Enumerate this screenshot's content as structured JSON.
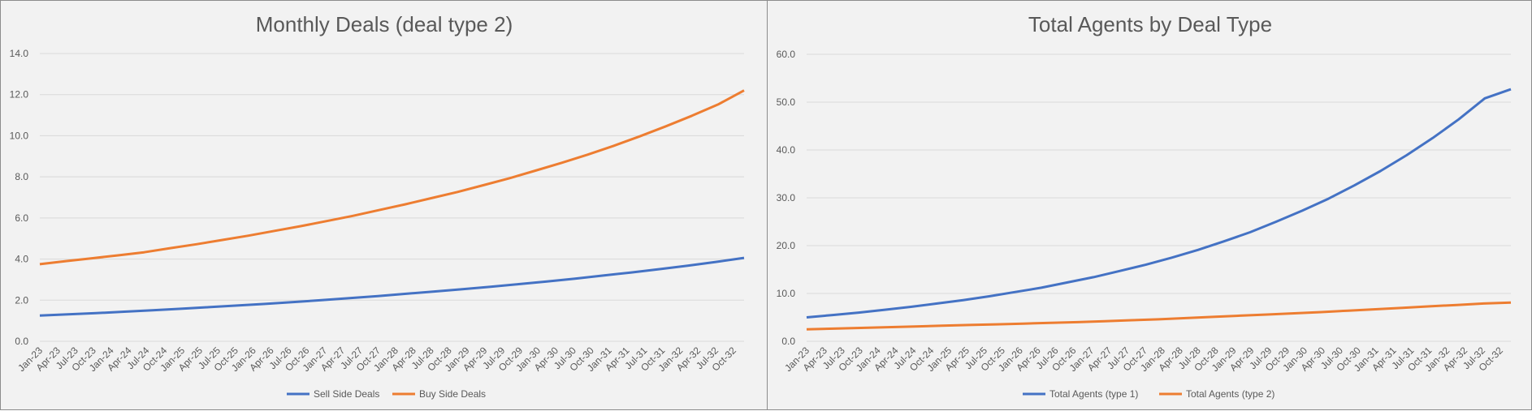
{
  "chart_data": [
    {
      "type": "line",
      "title": "Monthly Deals (deal type 2)",
      "xlabel": "",
      "ylabel": "",
      "x_tick_labels": [
        "Jan-23",
        "Apr-23",
        "Jul-23",
        "Oct-23",
        "Jan-24",
        "Apr-24",
        "Jul-24",
        "Oct-24",
        "Jan-25",
        "Apr-25",
        "Jul-25",
        "Oct-25",
        "Jan-26",
        "Apr-26",
        "Jul-26",
        "Oct-26",
        "Jan-27",
        "Apr-27",
        "Jul-27",
        "Oct-27",
        "Jan-28",
        "Apr-28",
        "Jul-28",
        "Oct-28",
        "Jan-29",
        "Apr-29",
        "Jul-29",
        "Oct-29",
        "Jan-30",
        "Apr-30",
        "Jul-30",
        "Oct-30",
        "Jan-31",
        "Apr-31",
        "Jul-31",
        "Oct-31",
        "Jan-32",
        "Apr-32",
        "Jul-32",
        "Oct-32"
      ],
      "y_tick_labels": [
        "0.0",
        "2.0",
        "4.0",
        "6.0",
        "8.0",
        "10.0",
        "12.0",
        "14.0"
      ],
      "ylim": [
        0,
        14
      ],
      "grid": true,
      "legend_position": "bottom",
      "series": [
        {
          "name": "Sell Side Deals",
          "color": "#4472c4",
          "values": [
            1.25,
            1.31,
            1.37,
            1.44,
            1.51,
            1.58,
            1.66,
            1.74,
            1.82,
            1.91,
            2.0,
            2.1,
            2.2,
            2.31,
            2.42,
            2.53,
            2.65,
            2.78,
            2.91,
            3.05,
            3.2,
            3.35,
            3.51,
            3.68,
            3.86,
            4.06
          ]
        },
        {
          "name": "Buy Side Deals",
          "color": "#ed7d31",
          "values": [
            3.75,
            3.9,
            4.04,
            4.18,
            4.33,
            4.53,
            4.72,
            4.93,
            5.14,
            5.37,
            5.6,
            5.85,
            6.1,
            6.38,
            6.66,
            6.96,
            7.26,
            7.59,
            7.93,
            8.3,
            8.68,
            9.08,
            9.51,
            9.97,
            10.46,
            10.97,
            11.52,
            12.2
          ]
        }
      ]
    },
    {
      "type": "line",
      "title": "Total Agents by Deal Type",
      "xlabel": "",
      "ylabel": "",
      "x_tick_labels": [
        "Jan-23",
        "Apr-23",
        "Jul-23",
        "Oct-23",
        "Jan-24",
        "Apr-24",
        "Jul-24",
        "Oct-24",
        "Jan-25",
        "Apr-25",
        "Jul-25",
        "Oct-25",
        "Jan-26",
        "Apr-26",
        "Jul-26",
        "Oct-26",
        "Jan-27",
        "Apr-27",
        "Jul-27",
        "Oct-27",
        "Jan-28",
        "Apr-28",
        "Jul-28",
        "Oct-28",
        "Jan-29",
        "Apr-29",
        "Jul-29",
        "Oct-29",
        "Jan-30",
        "Apr-30",
        "Jul-30",
        "Oct-30",
        "Jan-31",
        "Apr-31",
        "Jul-31",
        "Oct-31",
        "Jan-32",
        "Apr-32",
        "Jul-32",
        "Oct-32"
      ],
      "y_tick_labels": [
        "0.0",
        "10.0",
        "20.0",
        "30.0",
        "40.0",
        "50.0",
        "60.0"
      ],
      "ylim": [
        0,
        60
      ],
      "grid": true,
      "legend_position": "bottom",
      "series": [
        {
          "name": "Total Agents (type 1)",
          "color": "#4472c4",
          "values": [
            5.0,
            5.5,
            6.0,
            6.6,
            7.2,
            7.9,
            8.6,
            9.4,
            10.3,
            11.2,
            12.3,
            13.4,
            14.7,
            16.0,
            17.5,
            19.1,
            20.9,
            22.8,
            25.0,
            27.3,
            29.8,
            32.6,
            35.6,
            38.9,
            42.5,
            46.4,
            50.8,
            52.7
          ]
        },
        {
          "name": "Total Agents (type 2)",
          "color": "#ed7d31",
          "values": [
            2.5,
            2.65,
            2.8,
            2.95,
            3.1,
            3.25,
            3.4,
            3.55,
            3.7,
            3.85,
            4.0,
            4.2,
            4.4,
            4.6,
            4.85,
            5.1,
            5.35,
            5.6,
            5.85,
            6.1,
            6.4,
            6.7,
            7.0,
            7.3,
            7.6,
            7.9,
            8.1
          ]
        }
      ]
    }
  ]
}
